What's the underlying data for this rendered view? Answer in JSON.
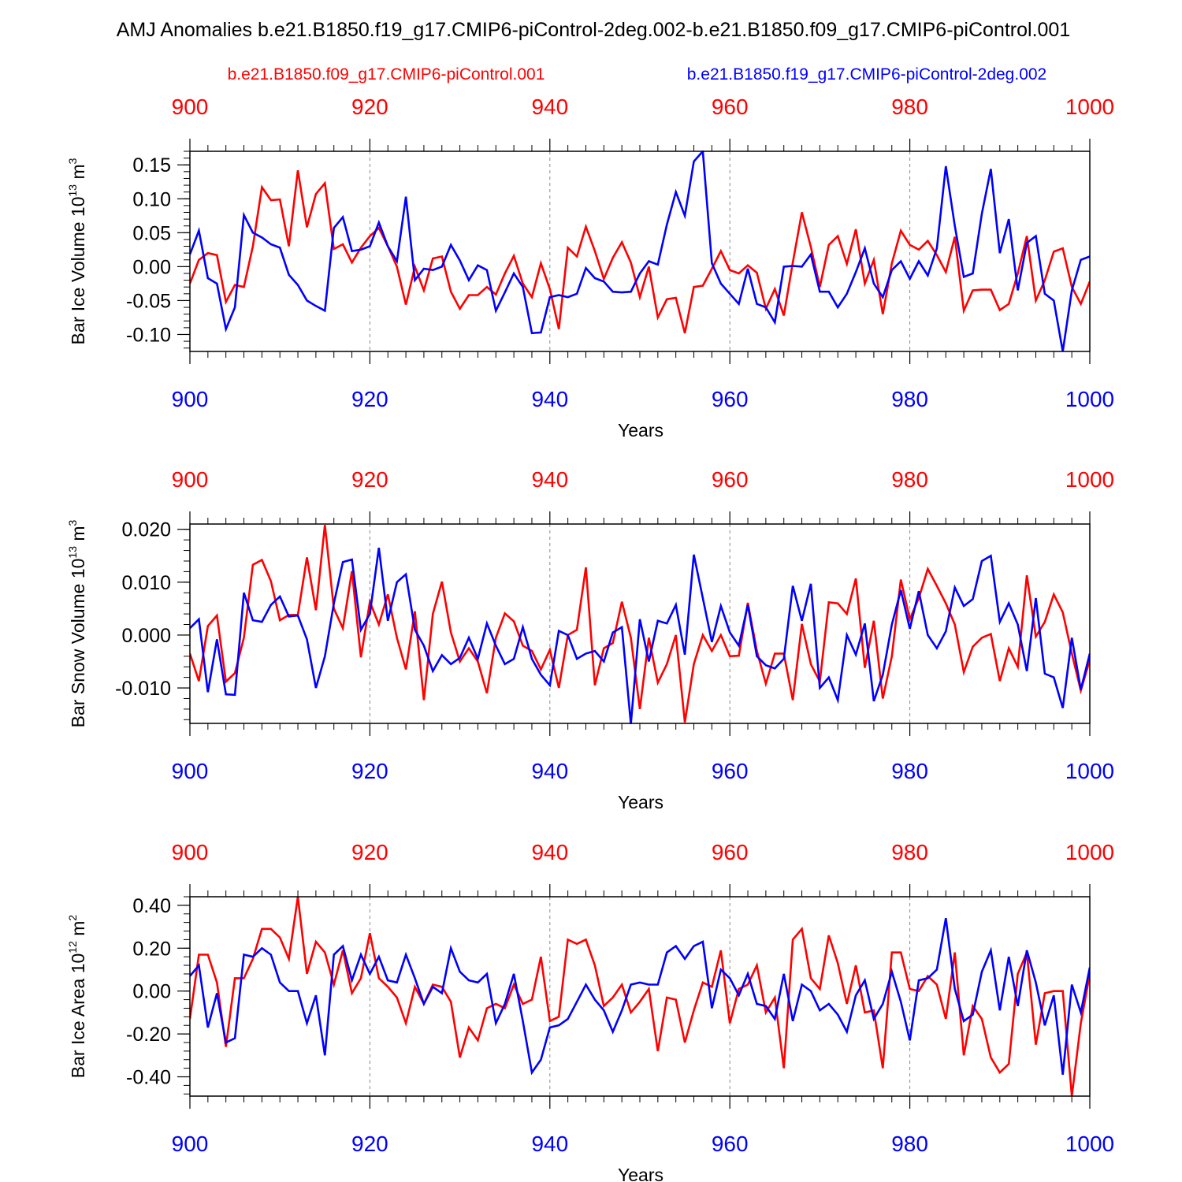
{
  "figure": {
    "title": "AMJ Anomalies b.e21.B1850.f19_g17.CMIP6-piControl-2deg.002-b.e21.B1850.f09_g17.CMIP6-piControl.001",
    "legend": [
      {
        "name": "b.e21.B1850.f09_g17.CMIP6-piControl.001",
        "color": "#ff0000"
      },
      {
        "name": "b.e21.B1850.f19_g17.CMIP6-piControl-2deg.002",
        "color": "#0000ff"
      }
    ]
  },
  "chart_data": [
    {
      "type": "line",
      "ylabel_main": "Bar Ice Volume 10",
      "ylabel_exp": "13",
      "ylabel_unit": " m",
      "ylabel_unit_exp": "3",
      "xlabel": "Years",
      "xlim": [
        900,
        1000
      ],
      "ylim": [
        -0.125,
        0.17
      ],
      "yticks": [
        -0.1,
        -0.05,
        0.0,
        0.05,
        0.1,
        0.15
      ],
      "yticklabels": [
        "-0.10",
        "-0.05",
        "0.00",
        "0.05",
        "0.10",
        "0.15"
      ],
      "yminor_step": 0.01,
      "xticks": [
        900,
        920,
        940,
        960,
        980,
        1000
      ],
      "xticklabels": [
        "900",
        "920",
        "940",
        "960",
        "980",
        "1000"
      ],
      "series": [
        {
          "name": "b.e21.B1850.f09_g17.CMIP6-piControl.001",
          "color": "#ff0000",
          "x0": 900,
          "values": [
            -0.025,
            0.01,
            0.02,
            0.017,
            -0.052,
            -0.027,
            -0.03,
            0.03,
            0.117,
            0.098,
            0.099,
            0.03,
            0.142,
            0.058,
            0.107,
            0.123,
            0.026,
            0.033,
            0.006,
            0.028,
            0.045,
            0.057,
            0.03,
            0.0,
            -0.056,
            0.0,
            -0.035,
            0.012,
            0.015,
            -0.037,
            -0.062,
            -0.042,
            -0.042,
            -0.03,
            -0.041,
            -0.01,
            0.016,
            -0.025,
            -0.045,
            0.005,
            -0.033,
            -0.092,
            0.028,
            0.015,
            0.059,
            0.023,
            -0.018,
            0.013,
            0.036,
            0.006,
            -0.045,
            0.0,
            -0.075,
            -0.048,
            -0.046,
            -0.098,
            -0.03,
            -0.028,
            -0.003,
            0.023,
            -0.005,
            -0.01,
            0.002,
            -0.009,
            -0.062,
            -0.033,
            -0.072,
            0.006,
            0.08,
            0.029,
            -0.03,
            0.032,
            0.045,
            0.004,
            0.055,
            -0.025,
            0.01,
            -0.07,
            0.005,
            0.053,
            0.032,
            0.025,
            0.038,
            0.017,
            -0.008,
            0.044,
            -0.065,
            -0.035,
            -0.034,
            -0.034,
            -0.064,
            -0.055,
            -0.01,
            0.045,
            -0.05,
            -0.02,
            0.022,
            0.027,
            -0.03,
            -0.055,
            -0.022
          ]
        },
        {
          "name": "b.e21.B1850.f19_g17.CMIP6-piControl-2deg.002",
          "color": "#0000ff",
          "x0": 900,
          "values": [
            0.018,
            0.053,
            -0.017,
            -0.025,
            -0.092,
            -0.06,
            0.076,
            0.05,
            0.043,
            0.033,
            0.028,
            -0.012,
            -0.027,
            -0.05,
            -0.058,
            -0.065,
            0.057,
            0.073,
            0.023,
            0.025,
            0.03,
            0.065,
            0.03,
            0.008,
            0.103,
            -0.02,
            -0.003,
            -0.005,
            0.0,
            0.032,
            0.009,
            -0.02,
            0.002,
            -0.005,
            -0.065,
            -0.038,
            -0.01,
            -0.03,
            -0.098,
            -0.097,
            -0.045,
            -0.042,
            -0.045,
            -0.04,
            -0.002,
            -0.017,
            -0.022,
            -0.037,
            -0.038,
            -0.037,
            -0.01,
            0.008,
            0.003,
            0.062,
            0.11,
            0.075,
            0.155,
            0.17,
            0.005,
            -0.025,
            -0.04,
            -0.055,
            -0.003,
            -0.055,
            -0.06,
            -0.082,
            0.0,
            0.001,
            0.0,
            0.018,
            -0.037,
            -0.037,
            -0.06,
            -0.04,
            -0.008,
            0.027,
            -0.025,
            -0.045,
            -0.005,
            0.008,
            -0.018,
            0.008,
            -0.013,
            0.027,
            0.148,
            0.06,
            -0.015,
            -0.01,
            0.078,
            0.144,
            0.02,
            0.07,
            -0.035,
            0.035,
            0.045,
            -0.04,
            -0.05,
            -0.125,
            -0.035,
            0.01,
            0.015
          ]
        }
      ]
    },
    {
      "type": "line",
      "ylabel_main": "Bar Snow Volume 10",
      "ylabel_exp": "13",
      "ylabel_unit": " m",
      "ylabel_unit_exp": "3",
      "xlabel": "Years",
      "xlim": [
        900,
        1000
      ],
      "ylim": [
        -0.0167,
        0.021
      ],
      "yticks": [
        -0.01,
        0.0,
        0.01,
        0.02
      ],
      "yticklabels": [
        "-0.010",
        "0.000",
        "0.010",
        "0.020"
      ],
      "yminor_step": 0.002,
      "xticks": [
        900,
        920,
        940,
        960,
        980,
        1000
      ],
      "xticklabels": [
        "900",
        "920",
        "940",
        "960",
        "980",
        "1000"
      ],
      "series": [
        {
          "name": "b.e21.B1850.f09_g17.CMIP6-piControl.001",
          "color": "#ff0000",
          "x0": 900,
          "values": [
            -0.0035,
            -0.0087,
            0.0017,
            0.0037,
            -0.0088,
            -0.0072,
            -0.0005,
            0.0133,
            0.0142,
            0.0102,
            0.0028,
            0.0038,
            0.0038,
            0.0147,
            0.0047,
            0.0208,
            0.005,
            0.0013,
            0.0121,
            -0.0042,
            0.0063,
            0.002,
            0.0077,
            -0.0005,
            -0.0065,
            0.0045,
            -0.0123,
            0.004,
            0.0101,
            0.0005,
            -0.005,
            -0.0025,
            -0.005,
            -0.011,
            -0.0005,
            0.0041,
            0.0026,
            -0.002,
            -0.003,
            -0.0065,
            -0.0028,
            -0.01,
            0.0,
            0.001,
            0.0128,
            -0.0095,
            -0.0025,
            -0.0015,
            0.0063,
            -0.0005,
            -0.014,
            -0.0005,
            -0.009,
            -0.0055,
            0.0,
            -0.0165,
            -0.0055,
            0.0,
            -0.003,
            0.0,
            -0.004,
            -0.0039,
            0.0061,
            -0.003,
            -0.0092,
            -0.0035,
            -0.0035,
            -0.0123,
            0.0021,
            -0.0055,
            -0.0088,
            0.0062,
            0.006,
            0.004,
            0.0107,
            -0.0062,
            0.0027,
            -0.012,
            -0.004,
            0.0105,
            0.003,
            0.007,
            0.0125,
            0.0093,
            0.006,
            0.002,
            -0.007,
            -0.0022,
            -0.0005,
            0.0002,
            -0.0087,
            -0.0025,
            -0.006,
            0.0113,
            -0.0003,
            0.0025,
            0.0077,
            0.0043,
            -0.0035,
            -0.0105,
            -0.0047
          ]
        },
        {
          "name": "b.e21.B1850.f19_g17.CMIP6-piControl-2deg.002",
          "color": "#0000ff",
          "x0": 900,
          "values": [
            0.0013,
            0.003,
            -0.0108,
            -0.0008,
            -0.0112,
            -0.0113,
            0.008,
            0.0028,
            0.0025,
            0.0057,
            0.0073,
            0.0035,
            0.0037,
            -0.0008,
            -0.01,
            -0.004,
            0.006,
            0.0138,
            0.0143,
            0.001,
            0.004,
            0.0165,
            0.0027,
            0.01,
            0.0115,
            0.001,
            -0.002,
            -0.0068,
            -0.0038,
            -0.0055,
            -0.0043,
            -0.0005,
            -0.0045,
            0.0022,
            -0.002,
            -0.0055,
            -0.0045,
            0.0015,
            -0.0045,
            -0.0075,
            -0.0095,
            0.0008,
            0.0,
            -0.0045,
            -0.0035,
            -0.003,
            -0.005,
            0.0005,
            0.0015,
            -0.0168,
            0.003,
            -0.005,
            0.0027,
            0.0022,
            0.0057,
            -0.0037,
            0.0152,
            0.007,
            -0.0013,
            0.0055,
            0.0005,
            -0.002,
            0.0057,
            -0.004,
            -0.0057,
            -0.0063,
            -0.0045,
            0.0093,
            0.0027,
            0.0097,
            -0.01,
            -0.008,
            -0.0123,
            0.0,
            -0.0037,
            0.0022,
            -0.0125,
            -0.0075,
            0.002,
            0.0085,
            0.0012,
            0.0083,
            0.0,
            -0.0025,
            0.0007,
            0.009,
            0.0055,
            0.0068,
            0.014,
            0.015,
            0.0025,
            0.006,
            0.002,
            -0.0068,
            0.007,
            -0.0073,
            -0.008,
            -0.0138,
            -0.0005,
            -0.0103,
            -0.0035
          ]
        }
      ]
    },
    {
      "type": "line",
      "ylabel_main": "Bar Ice Area 10",
      "ylabel_exp": "12",
      "ylabel_unit": " m",
      "ylabel_unit_exp": "2",
      "xlabel": "Years",
      "xlim": [
        900,
        1000
      ],
      "ylim": [
        -0.49,
        0.44
      ],
      "yticks": [
        -0.4,
        -0.2,
        0.0,
        0.2,
        0.4
      ],
      "yticklabels": [
        "-0.40",
        "-0.20",
        "0.00",
        "0.20",
        "0.40"
      ],
      "yminor_step": 0.04,
      "xticks": [
        900,
        920,
        940,
        960,
        980,
        1000
      ],
      "xticklabels": [
        "900",
        "920",
        "940",
        "960",
        "980",
        "1000"
      ],
      "series": [
        {
          "name": "b.e21.B1850.f09_g17.CMIP6-piControl.001",
          "color": "#ff0000",
          "x0": 900,
          "values": [
            -0.13,
            0.17,
            0.17,
            0.04,
            -0.26,
            0.06,
            0.06,
            0.15,
            0.29,
            0.29,
            0.25,
            0.15,
            0.44,
            0.08,
            0.23,
            0.18,
            0.03,
            0.19,
            -0.01,
            0.06,
            0.27,
            0.06,
            0.02,
            -0.03,
            -0.15,
            0.02,
            -0.06,
            0.03,
            0.02,
            -0.05,
            -0.31,
            -0.17,
            -0.23,
            -0.08,
            -0.06,
            -0.08,
            0.03,
            -0.06,
            -0.04,
            0.16,
            -0.14,
            -0.12,
            0.24,
            0.22,
            0.24,
            0.12,
            -0.07,
            -0.03,
            0.03,
            -0.1,
            -0.05,
            0.01,
            -0.28,
            -0.03,
            -0.04,
            -0.24,
            -0.09,
            0.04,
            0.02,
            0.19,
            -0.15,
            0.01,
            0.03,
            0.12,
            -0.1,
            -0.03,
            -0.36,
            0.24,
            0.29,
            0.06,
            0.01,
            0.26,
            0.13,
            -0.06,
            0.12,
            -0.1,
            -0.09,
            -0.36,
            0.18,
            0.18,
            0.01,
            0.0,
            0.07,
            0.03,
            -0.13,
            0.18,
            -0.3,
            -0.07,
            -0.13,
            -0.31,
            -0.38,
            -0.34,
            0.08,
            0.18,
            -0.25,
            -0.01,
            0.0,
            0.0,
            -0.49,
            -0.15,
            0.08
          ]
        },
        {
          "name": "b.e21.B1850.f19_g17.CMIP6-piControl-2deg.002",
          "color": "#0000ff",
          "x0": 900,
          "values": [
            0.07,
            0.12,
            -0.17,
            -0.01,
            -0.24,
            -0.22,
            0.17,
            0.16,
            0.2,
            0.17,
            0.04,
            0.0,
            0.0,
            -0.15,
            -0.02,
            -0.3,
            0.17,
            0.21,
            0.05,
            0.17,
            0.08,
            0.16,
            0.05,
            0.04,
            0.17,
            0.06,
            -0.06,
            0.02,
            -0.01,
            0.2,
            0.09,
            0.05,
            0.04,
            0.08,
            -0.15,
            -0.06,
            0.08,
            -0.14,
            -0.38,
            -0.32,
            -0.17,
            -0.16,
            -0.13,
            -0.05,
            0.03,
            -0.04,
            -0.09,
            -0.19,
            -0.09,
            0.03,
            0.04,
            0.03,
            0.03,
            0.18,
            0.21,
            0.15,
            0.21,
            0.23,
            -0.08,
            0.1,
            0.06,
            -0.02,
            0.08,
            -0.06,
            -0.07,
            -0.13,
            0.08,
            -0.14,
            0.03,
            0.0,
            -0.09,
            -0.06,
            -0.11,
            -0.19,
            -0.02,
            0.05,
            -0.13,
            -0.06,
            0.09,
            -0.05,
            -0.23,
            0.05,
            0.06,
            0.1,
            0.34,
            0.01,
            -0.14,
            -0.11,
            0.09,
            0.19,
            -0.09,
            0.16,
            -0.07,
            0.19,
            0.04,
            -0.16,
            -0.02,
            -0.39,
            0.03,
            -0.1,
            0.11
          ]
        }
      ]
    }
  ]
}
